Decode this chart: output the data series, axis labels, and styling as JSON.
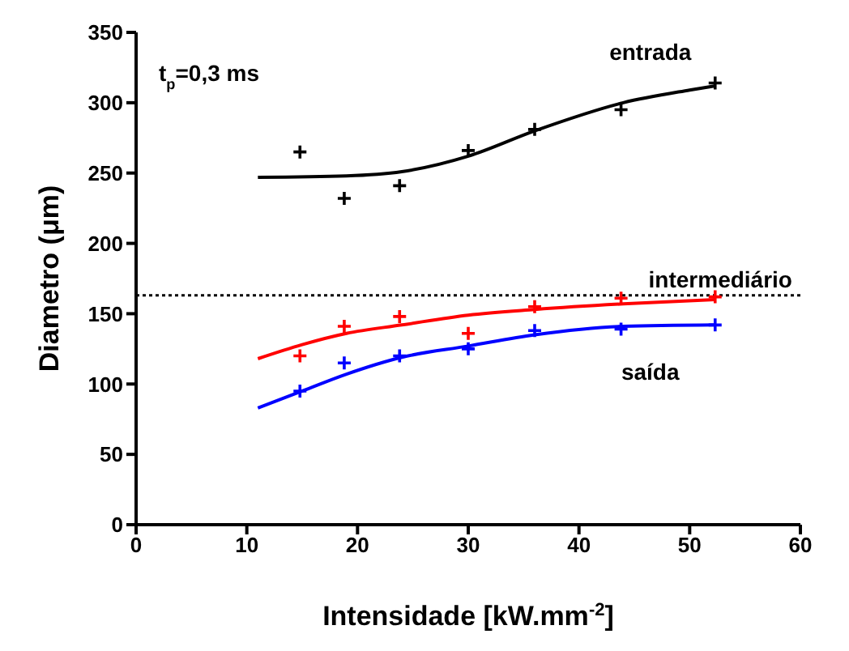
{
  "chart_data": {
    "type": "scatter",
    "xlabel": "Intensidade [kW.mm$^{-2}$]",
    "ylabel": "Diametro (μm)",
    "xlim": [
      0,
      60
    ],
    "xticks": [
      0,
      10,
      20,
      30,
      40,
      50,
      60
    ],
    "ylim": [
      0,
      350
    ],
    "yticks": [
      0,
      50,
      100,
      150,
      200,
      250,
      300,
      350
    ],
    "marker": "cross",
    "annotations": [
      "t$_{p}$=0,3 ms"
    ],
    "ref_lines": [
      {
        "axis": "y",
        "value": 163,
        "label": "intermediário",
        "color": "#000000",
        "line_style": "dotted"
      }
    ],
    "series": [
      {
        "color": "#000000",
        "x": [
          14.8,
          18.8,
          23.8,
          30,
          36,
          43.8,
          52.3
        ],
        "values": [
          265,
          232,
          241,
          266,
          281,
          295,
          314
        ]
      },
      {
        "color": "#ff0000",
        "x": [
          14.8,
          18.8,
          23.8,
          30,
          36,
          43.8,
          52.3
        ],
        "values": [
          120,
          141,
          148,
          136,
          155,
          161,
          162
        ]
      },
      {
        "color": "#0000ff",
        "x": [
          14.8,
          18.8,
          23.8,
          30,
          36,
          43.8,
          52.3
        ],
        "values": [
          95,
          115,
          120,
          125,
          138,
          139,
          142
        ]
      },
      {
        "type": "line",
        "name": "entrada",
        "color": "#000000",
        "marker": "none",
        "x": [
          11,
          19,
          24,
          30,
          36,
          44,
          50,
          52.3
        ],
        "values": [
          247,
          248,
          251,
          262,
          280,
          300,
          309,
          312
        ]
      },
      {
        "type": "line",
        "color": "#ff0000",
        "marker": "none",
        "x": [
          11,
          15,
          19,
          24,
          30,
          36,
          44,
          52.3
        ],
        "values": [
          118,
          128,
          136,
          142,
          149,
          153,
          157,
          160
        ]
      },
      {
        "type": "line",
        "name": "saída",
        "color": "#0000ff",
        "marker": "none",
        "x": [
          11,
          15,
          19,
          24,
          30,
          36,
          44,
          52.3
        ],
        "values": [
          83,
          95,
          107,
          119,
          127,
          135,
          141,
          142
        ]
      }
    ]
  }
}
